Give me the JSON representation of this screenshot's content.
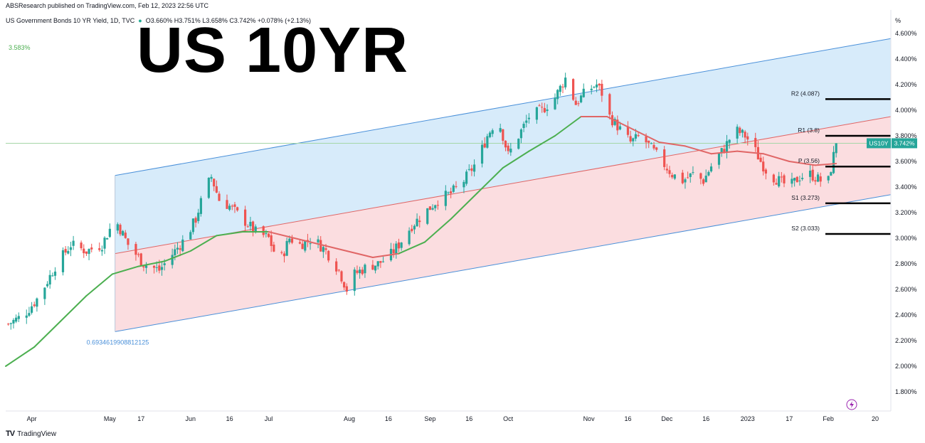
{
  "header": {
    "published": "ABSResearch published on TradingView.com, Feb 12, 2023 22:56 UTC",
    "symbol": "US Government Bonds 10 YR Yield, 1D, TVC",
    "open": "O3.660%",
    "high": "H3.751%",
    "low": "L3.658%",
    "close": "C3.742%",
    "change": "+0.078% (+2.13%)"
  },
  "overlay_title": "US 10YR",
  "ma_label": "3.583%",
  "channel_label": "0.6934619908812125",
  "footer": {
    "brand": "TradingView"
  },
  "price_tag": {
    "symbol": "US10Y",
    "price": "3.742%"
  },
  "colors": {
    "up": "#26a69a",
    "down": "#ef5350",
    "ma": "#4caf50",
    "regression_mid": "#e06666",
    "channel_line": "#4a90d9",
    "upper_fill": "#d7ebfa",
    "lower_fill": "#fbdde0",
    "pivot_line": "#000000"
  },
  "chart_data": {
    "type": "candlestick",
    "title": "",
    "y_unit": "%",
    "ylim": [
      1.65,
      4.75
    ],
    "y_ticks": [
      "4.600%",
      "4.400%",
      "4.200%",
      "4.000%",
      "3.800%",
      "3.600%",
      "3.400%",
      "3.200%",
      "3.000%",
      "2.800%",
      "2.600%",
      "2.400%",
      "2.200%",
      "2.000%",
      "1.800%"
    ],
    "y_tick_values": [
      4.6,
      4.4,
      4.2,
      4.0,
      3.8,
      3.6,
      3.4,
      3.2,
      3.0,
      2.8,
      2.6,
      2.4,
      2.2,
      2.0,
      1.8
    ],
    "x_ticks": [
      {
        "label": "Apr",
        "day": 9
      },
      {
        "label": "May",
        "day": 39
      },
      {
        "label": "17",
        "day": 51
      },
      {
        "label": "Jun",
        "day": 70
      },
      {
        "label": "16",
        "day": 85
      },
      {
        "label": "Jul",
        "day": 100
      },
      {
        "label": "Aug",
        "day": 131
      },
      {
        "label": "16",
        "day": 146
      },
      {
        "label": "Sep",
        "day": 162
      },
      {
        "label": "16",
        "day": 177
      },
      {
        "label": "Oct",
        "day": 192
      },
      {
        "label": "Nov",
        "day": 223
      },
      {
        "label": "16",
        "day": 238
      },
      {
        "label": "Dec",
        "day": 253
      },
      {
        "label": "16",
        "day": 268
      },
      {
        "label": "2023",
        "day": 284
      },
      {
        "label": "17",
        "day": 300
      },
      {
        "label": "Feb",
        "day": 315
      },
      {
        "label": "20",
        "day": 333
      }
    ],
    "x_range_days": [
      -1,
      339
    ],
    "pivots": [
      {
        "label": "R2 (4.087)",
        "value": 4.087
      },
      {
        "label": "R1 (3.8)",
        "value": 3.8
      },
      {
        "label": "P (3.56)",
        "value": 3.56
      },
      {
        "label": "S1 (3.273)",
        "value": 3.273
      },
      {
        "label": "S2 (3.033)",
        "value": 3.033
      }
    ],
    "regression_channel": {
      "start_day": 41,
      "end_day": 339,
      "upper": [
        3.49,
        4.56
      ],
      "mid": [
        2.88,
        3.95
      ],
      "lower": [
        2.27,
        3.34
      ]
    },
    "ma_points": [
      [
        -1,
        2.0
      ],
      [
        10,
        2.15
      ],
      [
        20,
        2.35
      ],
      [
        30,
        2.55
      ],
      [
        40,
        2.72
      ],
      [
        50,
        2.78
      ],
      [
        60,
        2.82
      ],
      [
        70,
        2.9
      ],
      [
        80,
        3.02
      ],
      [
        90,
        3.05
      ],
      [
        100,
        3.05
      ],
      [
        110,
        3.0
      ],
      [
        120,
        2.95
      ],
      [
        130,
        2.9
      ],
      [
        140,
        2.85
      ],
      [
        150,
        2.88
      ],
      [
        160,
        2.97
      ],
      [
        170,
        3.15
      ],
      [
        180,
        3.35
      ],
      [
        190,
        3.55
      ],
      [
        200,
        3.68
      ],
      [
        210,
        3.8
      ],
      [
        220,
        3.95
      ],
      [
        230,
        3.95
      ],
      [
        240,
        3.85
      ],
      [
        250,
        3.75
      ],
      [
        260,
        3.72
      ],
      [
        270,
        3.66
      ],
      [
        280,
        3.68
      ],
      [
        290,
        3.66
      ],
      [
        300,
        3.6
      ],
      [
        310,
        3.57
      ],
      [
        318,
        3.583
      ]
    ],
    "ma_colors": [
      [
        -1,
        "#4caf50"
      ],
      [
        100,
        "#e06666"
      ],
      [
        150,
        "#4caf50"
      ],
      [
        220,
        "#e06666"
      ],
      [
        282,
        "#4caf50"
      ],
      [
        290,
        "#e06666"
      ],
      [
        316,
        "#4caf50"
      ]
    ],
    "close_points": [
      [
        0,
        2.33
      ],
      [
        6,
        2.4
      ],
      [
        12,
        2.55
      ],
      [
        18,
        2.78
      ],
      [
        24,
        2.95
      ],
      [
        30,
        2.9
      ],
      [
        36,
        2.95
      ],
      [
        41,
        3.15
      ],
      [
        46,
        2.95
      ],
      [
        52,
        2.8
      ],
      [
        58,
        2.75
      ],
      [
        64,
        2.9
      ],
      [
        68,
        3.0
      ],
      [
        72,
        3.15
      ],
      [
        75,
        3.35
      ],
      [
        78,
        3.48
      ],
      [
        81,
        3.3
      ],
      [
        85,
        3.25
      ],
      [
        90,
        3.15
      ],
      [
        95,
        3.05
      ],
      [
        100,
        3.0
      ],
      [
        104,
        2.8
      ],
      [
        108,
        3.0
      ],
      [
        112,
        2.95
      ],
      [
        117,
        3.0
      ],
      [
        122,
        2.9
      ],
      [
        127,
        2.75
      ],
      [
        130,
        2.6
      ],
      [
        133,
        2.72
      ],
      [
        138,
        2.78
      ],
      [
        142,
        2.8
      ],
      [
        146,
        2.85
      ],
      [
        150,
        2.95
      ],
      [
        155,
        3.1
      ],
      [
        160,
        3.2
      ],
      [
        165,
        3.3
      ],
      [
        170,
        3.35
      ],
      [
        175,
        3.45
      ],
      [
        180,
        3.6
      ],
      [
        184,
        3.8
      ],
      [
        188,
        3.95
      ],
      [
        192,
        3.65
      ],
      [
        196,
        3.8
      ],
      [
        200,
        3.95
      ],
      [
        205,
        4.0
      ],
      [
        210,
        4.1
      ],
      [
        214,
        4.25
      ],
      [
        218,
        4.05
      ],
      [
        222,
        4.15
      ],
      [
        226,
        4.2
      ],
      [
        229,
        4.1
      ],
      [
        231,
        3.95
      ],
      [
        235,
        3.85
      ],
      [
        239,
        3.75
      ],
      [
        243,
        3.8
      ],
      [
        247,
        3.7
      ],
      [
        251,
        3.6
      ],
      [
        255,
        3.5
      ],
      [
        259,
        3.45
      ],
      [
        263,
        3.5
      ],
      [
        267,
        3.45
      ],
      [
        271,
        3.6
      ],
      [
        275,
        3.7
      ],
      [
        279,
        3.85
      ],
      [
        283,
        3.8
      ],
      [
        286,
        3.72
      ],
      [
        289,
        3.6
      ],
      [
        292,
        3.5
      ],
      [
        296,
        3.45
      ],
      [
        300,
        3.4
      ],
      [
        304,
        3.48
      ],
      [
        308,
        3.5
      ],
      [
        312,
        3.45
      ],
      [
        315,
        3.45
      ],
      [
        318,
        3.742
      ]
    ]
  }
}
